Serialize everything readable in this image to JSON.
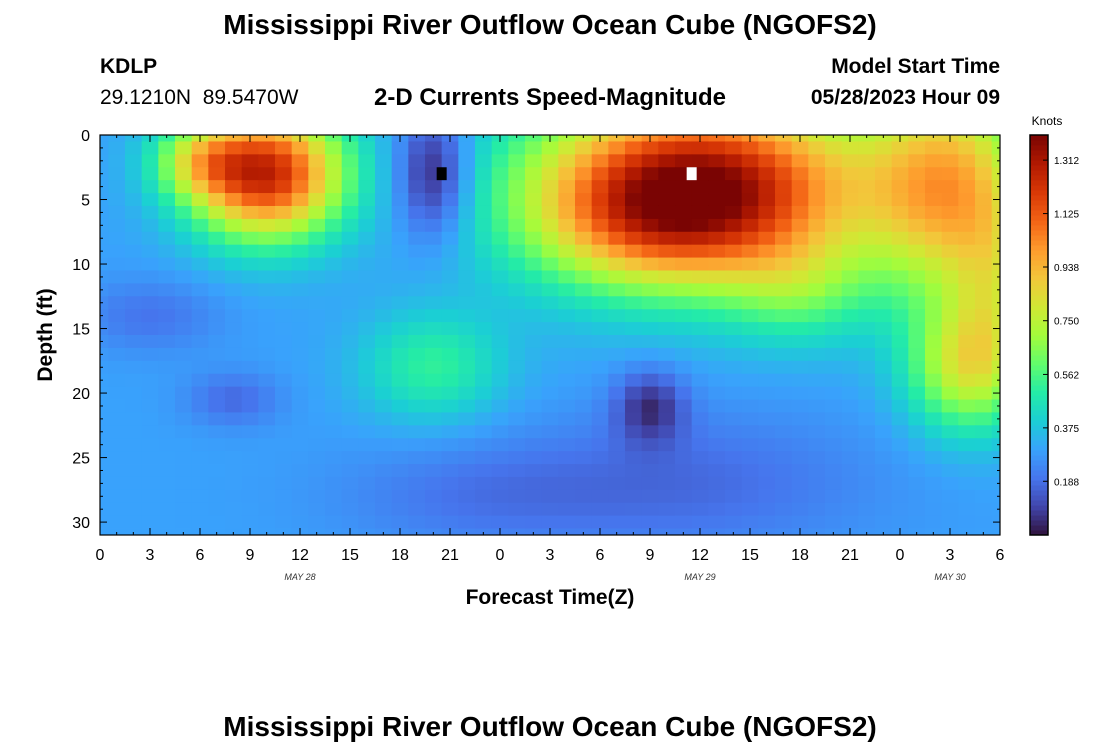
{
  "header": {
    "title": "Mississippi River Outflow Ocean Cube (NGOFS2)",
    "station": "KDLP",
    "coords": "29.1210N  89.5470W",
    "subtitle": "2-D Currents Speed-Magnitude",
    "model_start_label": "Model Start Time",
    "model_start_value": "05/28/2023 Hour 09"
  },
  "footer": {
    "title": "Mississippi River Outflow Ocean Cube (NGOFS2)"
  },
  "chart_data": {
    "type": "heatmap",
    "title": "2-D Currents Speed-Magnitude",
    "xlabel": "Forecast Time(Z)",
    "ylabel": "Depth (ft)",
    "xlim": [
      0,
      54
    ],
    "ylim": [
      0,
      31
    ],
    "y_inverted": true,
    "x_ticks": [
      0,
      3,
      6,
      9,
      12,
      15,
      18,
      21,
      24,
      27,
      30,
      33,
      36,
      39,
      42,
      45,
      48,
      51,
      54
    ],
    "x_tick_labels": [
      "0",
      "3",
      "6",
      "9",
      "12",
      "15",
      "18",
      "21",
      "0",
      "3",
      "6",
      "9",
      "12",
      "15",
      "18",
      "21",
      "0",
      "3",
      "6"
    ],
    "date_labels": [
      {
        "x": 12,
        "text": "MAY 28"
      },
      {
        "x": 36,
        "text": "MAY 29"
      },
      {
        "x": 51,
        "text": "MAY 30"
      }
    ],
    "y_ticks": [
      0,
      5,
      10,
      15,
      20,
      25,
      30
    ],
    "colorbar": {
      "label": "Knots",
      "range": [
        0,
        1.4
      ],
      "ticks": [
        0.188,
        0.375,
        0.562,
        0.75,
        0.938,
        1.125,
        1.312
      ],
      "tick_labels": [
        "0.188",
        "0.375",
        "0.562",
        "0.750",
        "0.938",
        "1.125",
        "1.312"
      ],
      "colors": [
        "#30123b",
        "#4145ab",
        "#4675ed",
        "#39a2fc",
        "#1bcfd4",
        "#24eca6",
        "#61fc6c",
        "#a4fc3b",
        "#d1e834",
        "#f3c63a",
        "#fe9b2d",
        "#f36315",
        "#d93806",
        "#b11901",
        "#7a0403"
      ]
    },
    "grid": {
      "nx": 55,
      "ny": 32,
      "cell_dx": 1,
      "cell_dy": 1,
      "base_speed": 0.3,
      "features": [
        {
          "x": 10,
          "y": 3,
          "sx": 3.2,
          "sy": 3.5,
          "amp": 0.95
        },
        {
          "x": 6,
          "y": 2,
          "sx": 2.0,
          "sy": 2.0,
          "amp": 0.3
        },
        {
          "x": 36,
          "y": 4,
          "sx": 7.0,
          "sy": 5.0,
          "amp": 1.05
        },
        {
          "x": 33,
          "y": 7,
          "sx": 5.0,
          "sy": 3.5,
          "amp": 0.25
        },
        {
          "x": 42,
          "y": 12,
          "sx": 3.0,
          "sy": 3.0,
          "amp": 0.2
        },
        {
          "x": 51,
          "y": 4,
          "sx": 3.5,
          "sy": 6.0,
          "amp": 0.6
        },
        {
          "x": 52,
          "y": 18,
          "sx": 2.5,
          "sy": 3.5,
          "amp": 0.45
        },
        {
          "x": 54,
          "y": 12,
          "sx": 2.0,
          "sy": 5.0,
          "amp": 0.25
        },
        {
          "x": 20,
          "y": 18,
          "sx": 3.0,
          "sy": 3.0,
          "amp": 0.22
        },
        {
          "x": 20,
          "y": 3,
          "sx": 1.6,
          "sy": 3.5,
          "amp": -0.3
        },
        {
          "x": 33,
          "y": 21,
          "sx": 1.5,
          "sy": 2.0,
          "amp": -0.22
        },
        {
          "x": 8,
          "y": 20.5,
          "sx": 2.0,
          "sy": 1.5,
          "amp": -0.12
        },
        {
          "x": 3,
          "y": 14,
          "sx": 3.0,
          "sy": 2.0,
          "amp": -0.1
        },
        {
          "x": 35,
          "y": 27,
          "sx": 8.0,
          "sy": 4.0,
          "amp": -0.12
        },
        {
          "x": 22,
          "y": 28,
          "sx": 6.0,
          "sy": 3.0,
          "amp": -0.08
        }
      ],
      "dark_cell": {
        "x": 20.5,
        "y": 3,
        "color": "#000000"
      },
      "white_cell": {
        "x": 35.5,
        "y": 3,
        "color": "#ffffff"
      }
    }
  }
}
